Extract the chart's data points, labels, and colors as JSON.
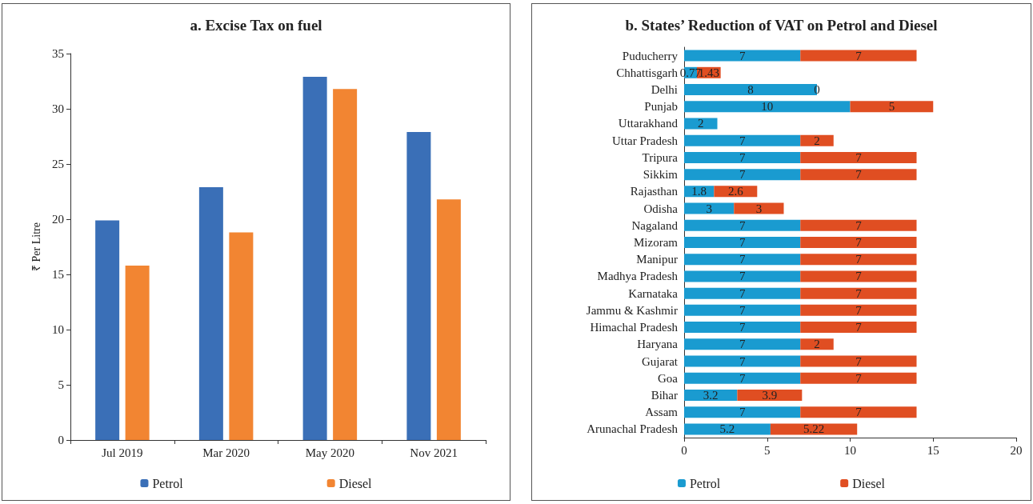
{
  "chart_data": [
    {
      "type": "bar",
      "title": "a. Excise Tax on fuel",
      "ylabel": "₹ Per Litre",
      "categories": [
        "Jul 2019",
        "Mar 2020",
        "May 2020",
        "Nov 2021"
      ],
      "series": [
        {
          "name": "Petrol",
          "color": "#3a6fb7",
          "values": [
            19.9,
            22.9,
            32.9,
            27.9
          ]
        },
        {
          "name": "Diesel",
          "color": "#f28532",
          "values": [
            15.8,
            18.8,
            31.8,
            21.8
          ]
        }
      ],
      "ylim": [
        0,
        35
      ],
      "yticks": [
        0,
        5,
        10,
        15,
        20,
        25,
        30,
        35
      ],
      "grid": false,
      "legend": "bottom"
    },
    {
      "type": "bar",
      "title": "b. States’ Reduction of VAT on Petrol and Diesel",
      "orientation": "horizontal",
      "stacked": true,
      "data_labels": true,
      "categories": [
        "Puducherry",
        "Chhattisgarh",
        "Delhi",
        "Punjab",
        "Uttarakhand",
        "Uttar Pradesh",
        "Tripura",
        "Sikkim",
        "Rajasthan",
        "Odisha",
        "Nagaland",
        "Mizoram",
        "Manipur",
        "Madhya Pradesh",
        "Karnataka",
        "Jammu & Kashmir",
        "Himachal Pradesh",
        "Haryana",
        "Gujarat",
        "Goa",
        "Bihar",
        "Assam",
        "Arunachal Pradesh"
      ],
      "series": [
        {
          "name": "Petrol",
          "color": "#1a9bd0",
          "values": [
            7,
            0.77,
            8,
            10,
            2,
            7,
            7,
            7,
            1.8,
            3,
            7,
            7,
            7,
            7,
            7,
            7,
            7,
            7,
            7,
            7,
            3.2,
            7,
            5.2
          ]
        },
        {
          "name": "Diesel",
          "color": "#e04e22",
          "values": [
            7,
            1.43,
            0,
            5,
            null,
            2,
            7,
            7,
            2.6,
            3,
            7,
            7,
            7,
            7,
            7,
            7,
            7,
            2,
            7,
            7,
            3.9,
            7,
            5.22
          ]
        }
      ],
      "xlim": [
        0,
        20
      ],
      "xticks": [
        0,
        5,
        10,
        15,
        20
      ],
      "grid": false,
      "legend": "bottom"
    }
  ]
}
